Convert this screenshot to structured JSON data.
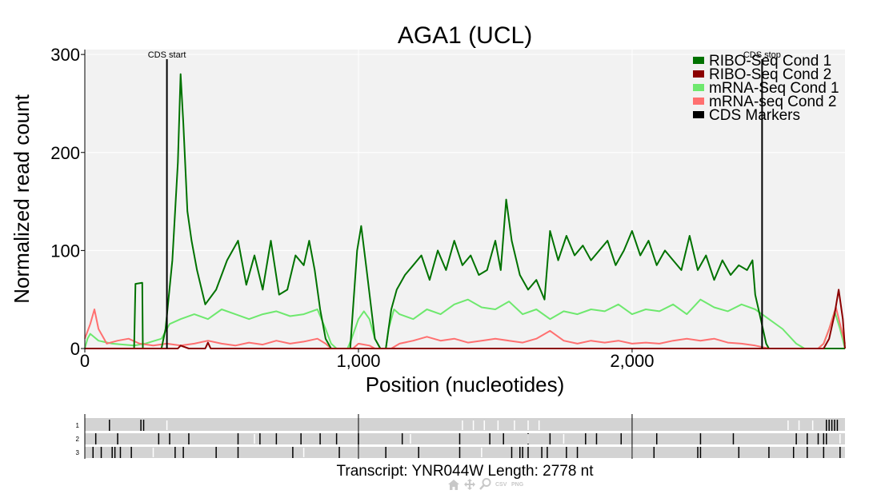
{
  "chart_data": {
    "type": "line",
    "title": "AGA1 (UCL)",
    "xlabel": "Position (nucleotides)",
    "ylabel": "Normalized read count",
    "xlim": [
      0,
      2778
    ],
    "ylim": [
      0,
      305
    ],
    "x_ticks": [
      0,
      1000,
      2000
    ],
    "x_tick_labels": [
      "0",
      "1,000",
      "2,000"
    ],
    "y_ticks": [
      0,
      100,
      200,
      300
    ],
    "y_tick_labels": [
      "0",
      "100",
      "200",
      "300"
    ],
    "grid": true,
    "legend_position": "top-right",
    "markers": [
      {
        "label": "CDS start",
        "x": 300
      },
      {
        "label": "CDS stop",
        "x": 2475
      }
    ],
    "series": [
      {
        "name": "RIBO-Seq Cond 1",
        "color": "#007200",
        "points": [
          [
            0,
            0
          ],
          [
            180,
            0
          ],
          [
            185,
            66
          ],
          [
            210,
            67
          ],
          [
            212,
            0
          ],
          [
            280,
            0
          ],
          [
            295,
            20
          ],
          [
            320,
            90
          ],
          [
            340,
            190
          ],
          [
            350,
            280
          ],
          [
            360,
            230
          ],
          [
            375,
            140
          ],
          [
            390,
            110
          ],
          [
            410,
            80
          ],
          [
            440,
            45
          ],
          [
            480,
            60
          ],
          [
            520,
            90
          ],
          [
            560,
            110
          ],
          [
            590,
            65
          ],
          [
            620,
            95
          ],
          [
            650,
            60
          ],
          [
            680,
            110
          ],
          [
            710,
            55
          ],
          [
            740,
            60
          ],
          [
            770,
            95
          ],
          [
            800,
            85
          ],
          [
            820,
            110
          ],
          [
            840,
            80
          ],
          [
            860,
            40
          ],
          [
            880,
            10
          ],
          [
            900,
            0
          ],
          [
            970,
            0
          ],
          [
            980,
            40
          ],
          [
            995,
            100
          ],
          [
            1010,
            125
          ],
          [
            1030,
            80
          ],
          [
            1060,
            10
          ],
          [
            1080,
            0
          ],
          [
            1100,
            0
          ],
          [
            1120,
            40
          ],
          [
            1140,
            60
          ],
          [
            1170,
            75
          ],
          [
            1200,
            85
          ],
          [
            1230,
            95
          ],
          [
            1260,
            70
          ],
          [
            1290,
            100
          ],
          [
            1320,
            80
          ],
          [
            1350,
            110
          ],
          [
            1380,
            85
          ],
          [
            1410,
            95
          ],
          [
            1440,
            75
          ],
          [
            1470,
            80
          ],
          [
            1500,
            110
          ],
          [
            1520,
            80
          ],
          [
            1540,
            152
          ],
          [
            1560,
            110
          ],
          [
            1590,
            75
          ],
          [
            1620,
            60
          ],
          [
            1650,
            70
          ],
          [
            1680,
            50
          ],
          [
            1700,
            120
          ],
          [
            1730,
            90
          ],
          [
            1760,
            115
          ],
          [
            1790,
            95
          ],
          [
            1820,
            105
          ],
          [
            1850,
            90
          ],
          [
            1880,
            100
          ],
          [
            1910,
            110
          ],
          [
            1940,
            85
          ],
          [
            1970,
            100
          ],
          [
            2000,
            120
          ],
          [
            2030,
            95
          ],
          [
            2060,
            110
          ],
          [
            2090,
            85
          ],
          [
            2120,
            100
          ],
          [
            2150,
            90
          ],
          [
            2180,
            80
          ],
          [
            2210,
            115
          ],
          [
            2240,
            80
          ],
          [
            2270,
            95
          ],
          [
            2300,
            70
          ],
          [
            2330,
            90
          ],
          [
            2360,
            75
          ],
          [
            2390,
            85
          ],
          [
            2420,
            80
          ],
          [
            2440,
            90
          ],
          [
            2450,
            55
          ],
          [
            2470,
            30
          ],
          [
            2490,
            5
          ],
          [
            2500,
            0
          ],
          [
            2778,
            0
          ]
        ]
      },
      {
        "name": "RIBO-Seq Cond 2",
        "color": "#8b0000",
        "points": [
          [
            0,
            0
          ],
          [
            340,
            0
          ],
          [
            350,
            3
          ],
          [
            380,
            0
          ],
          [
            440,
            0
          ],
          [
            450,
            6
          ],
          [
            460,
            0
          ],
          [
            2700,
            0
          ],
          [
            2720,
            10
          ],
          [
            2740,
            35
          ],
          [
            2755,
            60
          ],
          [
            2770,
            30
          ],
          [
            2778,
            0
          ]
        ]
      },
      {
        "name": "mRNA-Seq Cond 1",
        "color": "#6ee86e",
        "points": [
          [
            0,
            0
          ],
          [
            10,
            10
          ],
          [
            20,
            15
          ],
          [
            50,
            8
          ],
          [
            100,
            5
          ],
          [
            180,
            3
          ],
          [
            220,
            5
          ],
          [
            280,
            10
          ],
          [
            310,
            25
          ],
          [
            350,
            30
          ],
          [
            400,
            35
          ],
          [
            450,
            30
          ],
          [
            500,
            40
          ],
          [
            550,
            35
          ],
          [
            600,
            30
          ],
          [
            650,
            35
          ],
          [
            700,
            38
          ],
          [
            750,
            33
          ],
          [
            800,
            35
          ],
          [
            850,
            40
          ],
          [
            880,
            20
          ],
          [
            900,
            5
          ],
          [
            920,
            0
          ],
          [
            960,
            0
          ],
          [
            975,
            10
          ],
          [
            1000,
            30
          ],
          [
            1020,
            38
          ],
          [
            1040,
            30
          ],
          [
            1060,
            10
          ],
          [
            1080,
            0
          ],
          [
            1100,
            0
          ],
          [
            1110,
            20
          ],
          [
            1130,
            40
          ],
          [
            1150,
            35
          ],
          [
            1200,
            30
          ],
          [
            1250,
            40
          ],
          [
            1300,
            35
          ],
          [
            1350,
            45
          ],
          [
            1400,
            50
          ],
          [
            1450,
            42
          ],
          [
            1500,
            40
          ],
          [
            1550,
            48
          ],
          [
            1600,
            35
          ],
          [
            1650,
            40
          ],
          [
            1700,
            30
          ],
          [
            1750,
            38
          ],
          [
            1800,
            35
          ],
          [
            1850,
            40
          ],
          [
            1900,
            38
          ],
          [
            1950,
            45
          ],
          [
            2000,
            35
          ],
          [
            2050,
            40
          ],
          [
            2100,
            38
          ],
          [
            2150,
            45
          ],
          [
            2200,
            35
          ],
          [
            2250,
            50
          ],
          [
            2300,
            42
          ],
          [
            2350,
            38
          ],
          [
            2400,
            45
          ],
          [
            2450,
            40
          ],
          [
            2500,
            30
          ],
          [
            2550,
            20
          ],
          [
            2600,
            5
          ],
          [
            2630,
            0
          ],
          [
            2680,
            0
          ],
          [
            2700,
            5
          ],
          [
            2720,
            20
          ],
          [
            2740,
            38
          ],
          [
            2760,
            20
          ],
          [
            2778,
            0
          ]
        ]
      },
      {
        "name": "mRNA-seq Cond 2",
        "color": "#ff7070",
        "points": [
          [
            0,
            10
          ],
          [
            20,
            25
          ],
          [
            35,
            40
          ],
          [
            50,
            20
          ],
          [
            80,
            5
          ],
          [
            120,
            8
          ],
          [
            160,
            10
          ],
          [
            200,
            5
          ],
          [
            250,
            3
          ],
          [
            300,
            5
          ],
          [
            350,
            3
          ],
          [
            400,
            5
          ],
          [
            450,
            8
          ],
          [
            500,
            5
          ],
          [
            550,
            3
          ],
          [
            600,
            6
          ],
          [
            650,
            4
          ],
          [
            700,
            8
          ],
          [
            750,
            5
          ],
          [
            800,
            7
          ],
          [
            850,
            10
          ],
          [
            880,
            5
          ],
          [
            900,
            0
          ],
          [
            980,
            0
          ],
          [
            1000,
            5
          ],
          [
            1040,
            3
          ],
          [
            1060,
            0
          ],
          [
            1120,
            0
          ],
          [
            1150,
            5
          ],
          [
            1200,
            8
          ],
          [
            1250,
            12
          ],
          [
            1300,
            8
          ],
          [
            1350,
            10
          ],
          [
            1400,
            6
          ],
          [
            1450,
            8
          ],
          [
            1500,
            10
          ],
          [
            1550,
            8
          ],
          [
            1600,
            6
          ],
          [
            1650,
            10
          ],
          [
            1700,
            18
          ],
          [
            1750,
            8
          ],
          [
            1800,
            5
          ],
          [
            1850,
            8
          ],
          [
            1900,
            6
          ],
          [
            1950,
            8
          ],
          [
            2000,
            5
          ],
          [
            2050,
            6
          ],
          [
            2100,
            5
          ],
          [
            2150,
            8
          ],
          [
            2200,
            10
          ],
          [
            2250,
            8
          ],
          [
            2300,
            10
          ],
          [
            2350,
            6
          ],
          [
            2400,
            5
          ],
          [
            2450,
            3
          ],
          [
            2500,
            0
          ],
          [
            2680,
            0
          ],
          [
            2700,
            5
          ],
          [
            2720,
            20
          ],
          [
            2745,
            42
          ],
          [
            2760,
            25
          ],
          [
            2778,
            5
          ]
        ]
      }
    ]
  },
  "legend": {
    "entries": [
      {
        "label": "RIBO-Seq Cond 1",
        "color": "#007200"
      },
      {
        "label": "RIBO-Seq Cond 2",
        "color": "#8b0000"
      },
      {
        "label": "mRNA-Seq Cond 1",
        "color": "#6ee86e"
      },
      {
        "label": "mRNA-seq Cond 2",
        "color": "#ff7070"
      },
      {
        "label": "CDS Markers",
        "color": "#000000"
      }
    ]
  },
  "frames": {
    "labels": [
      "1",
      "2",
      "3"
    ],
    "band_color": "#d3d3d3",
    "f1_stops_dark": [
      90,
      205,
      215,
      2710,
      2720,
      2730,
      2740,
      2750
    ],
    "f1_stops_light": [
      300,
      1380,
      1420,
      1460,
      1510,
      1570,
      1620,
      1660,
      2570,
      2610,
      2660
    ],
    "f2_stops_dark": [
      40,
      120,
      270,
      310,
      380,
      560,
      640,
      700,
      790,
      860,
      920,
      1000,
      1160,
      1370,
      1480,
      1530,
      1620,
      1700,
      1830,
      1870,
      1960,
      2090,
      2250,
      2370,
      2600,
      2640,
      2680,
      2700,
      2710
    ],
    "f2_stops_light": [
      620,
      1190,
      1620,
      1750,
      2760
    ],
    "f3_stops_dark": [
      30,
      60,
      100,
      110,
      130,
      170,
      330,
      360,
      480,
      560,
      760,
      930,
      1100,
      1220,
      1370,
      1560,
      1590,
      1600,
      1620,
      1670,
      1690,
      1760,
      1800,
      2080,
      2240,
      2250,
      2390,
      2500,
      2590,
      2640,
      2700,
      2760
    ],
    "f3_stops_light": [
      250,
      800,
      1450,
      2000
    ]
  },
  "footer": "Transcript: YNR044W Length: 2778 nt",
  "toolbar": {
    "csv_label": "CSV",
    "png_label": "PNG"
  }
}
